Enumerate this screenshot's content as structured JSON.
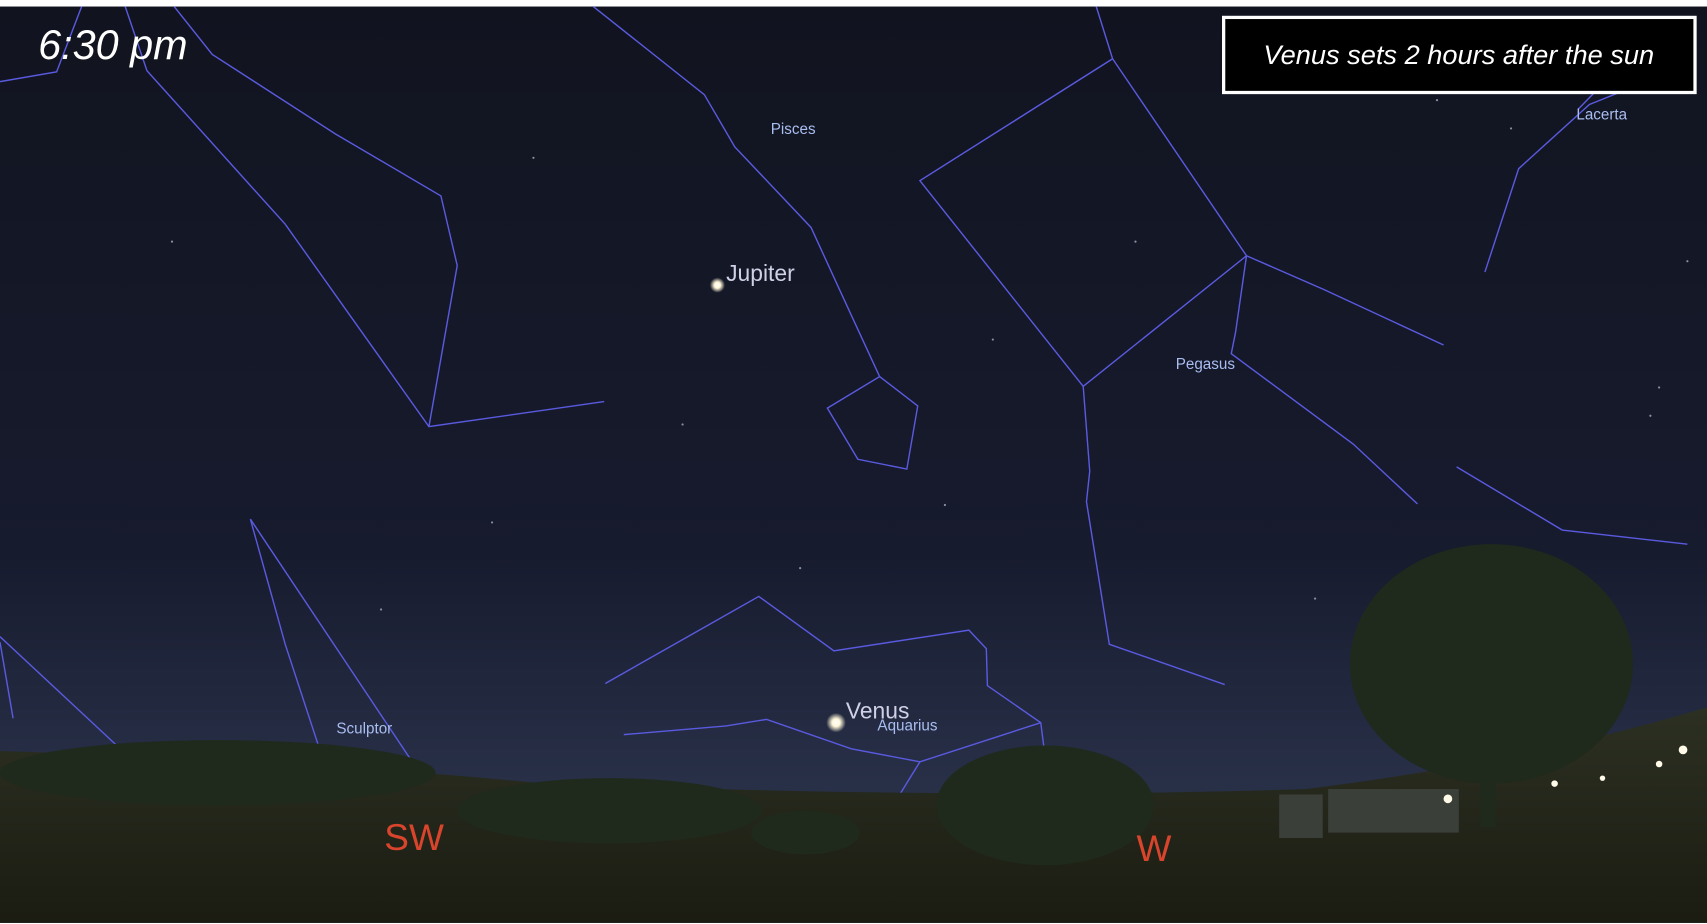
{
  "header": {
    "time": "6:30 pm",
    "caption": "Venus sets 2 hours after the sun"
  },
  "constellations": [
    "Pisces",
    "Pegasus",
    "Lacerta",
    "Sculptor",
    "Aquarius"
  ],
  "planets": [
    "Jupiter",
    "Venus"
  ],
  "compass": [
    "SW",
    "W"
  ]
}
